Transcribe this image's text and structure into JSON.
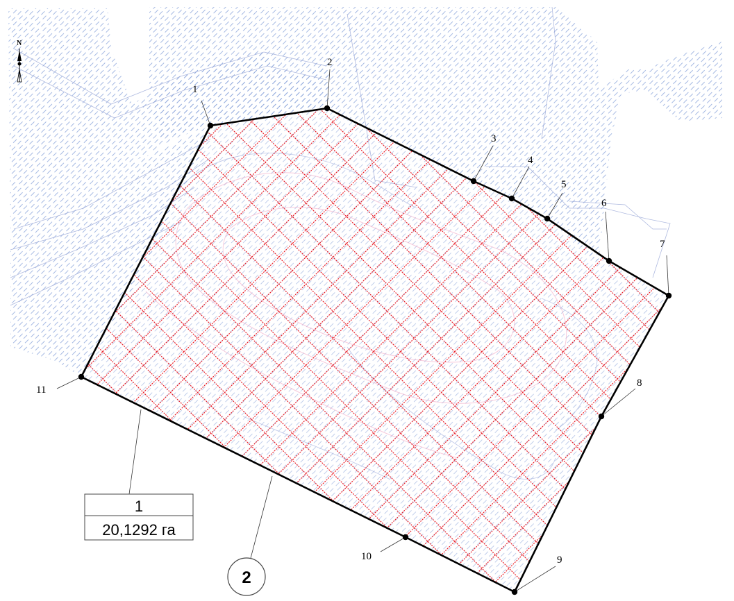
{
  "map": {
    "colors": {
      "background": "#ffffff",
      "hatch": "#8fa8dc",
      "boundary": "#000000",
      "grid": "#e8202a",
      "faint_pink": "#f0a0c0",
      "leader": "#333333"
    },
    "north_arrow": {
      "label": "N",
      "icon": "north-arrow-icon"
    },
    "parcel": {
      "vertices": [
        {
          "id": "1",
          "label": "1"
        },
        {
          "id": "2",
          "label": "2"
        },
        {
          "id": "3",
          "label": "3"
        },
        {
          "id": "4",
          "label": "4"
        },
        {
          "id": "5",
          "label": "5"
        },
        {
          "id": "6",
          "label": "6"
        },
        {
          "id": "7",
          "label": "7"
        },
        {
          "id": "8",
          "label": "8"
        },
        {
          "id": "9",
          "label": "9"
        },
        {
          "id": "10",
          "label": "10"
        },
        {
          "id": "11",
          "label": "11"
        }
      ]
    },
    "area_box": {
      "number": "1",
      "area": "20,1292 га"
    },
    "circle_label": "2"
  }
}
